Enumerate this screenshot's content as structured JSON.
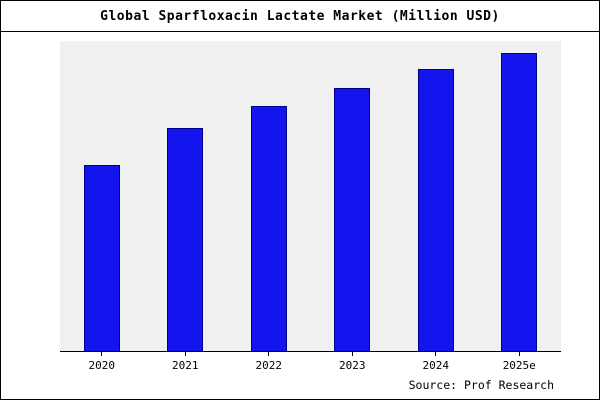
{
  "page": {
    "source": "Source: Prof Research"
  },
  "chart_data": {
    "type": "bar",
    "title": "Global Sparfloxacin Lactate Market (Million USD)",
    "categories": [
      "2020",
      "2021",
      "2022",
      "2023",
      "2024",
      "2025e"
    ],
    "values": [
      60,
      72,
      79,
      85,
      91,
      96
    ],
    "xlabel": "",
    "ylabel": "",
    "ylim": [
      0,
      100
    ],
    "grid": false,
    "legend": false,
    "y_axis_labels_visible": false,
    "bar_color": "#1414ee",
    "bar_edge_color": "#00008b",
    "plot_bg": "#f0f0f0",
    "outer_bg": "#ffffff",
    "frame_border_color": "#000000"
  }
}
